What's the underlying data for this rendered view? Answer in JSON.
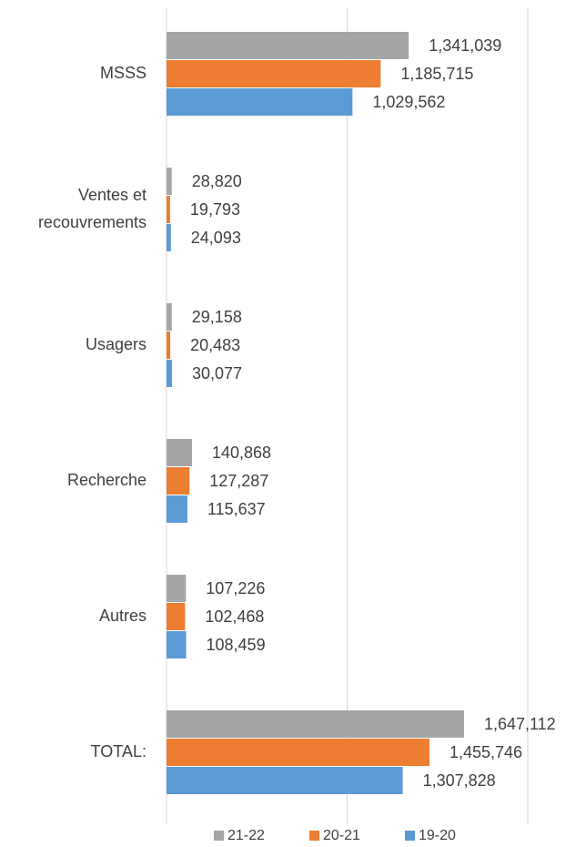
{
  "chart_data": {
    "type": "barh",
    "categories": [
      "MSSS",
      "Ventes et recouvrements",
      "Usagers",
      "Recherche",
      "Autres",
      "TOTAL:"
    ],
    "series": [
      {
        "name": "21-22",
        "color": "#a5a5a5",
        "values": [
          1341039,
          28820,
          29158,
          140868,
          107226,
          1647112
        ],
        "value_labels": [
          "1,341,039",
          "28,820",
          "29,158",
          "140,868",
          "107,226",
          "1,647,112"
        ]
      },
      {
        "name": "20-21",
        "color": "#ed7d31",
        "values": [
          1185715,
          19793,
          20483,
          127287,
          102468,
          1455746
        ],
        "value_labels": [
          "1,185,715",
          "19,793",
          "20,483",
          "127,287",
          "102,468",
          "1,455,746"
        ]
      },
      {
        "name": "19-20",
        "color": "#5b9bd5",
        "values": [
          1029562,
          24093,
          30077,
          115637,
          108459,
          1307828
        ],
        "value_labels": [
          "1,029,562",
          "24,093",
          "30,077",
          "115,637",
          "108,459",
          "1,307,828"
        ]
      }
    ],
    "xlim": [
      0,
      2000000
    ],
    "xticks": [
      0,
      1000000,
      2000000
    ],
    "grid": true,
    "legend": "bottom"
  }
}
